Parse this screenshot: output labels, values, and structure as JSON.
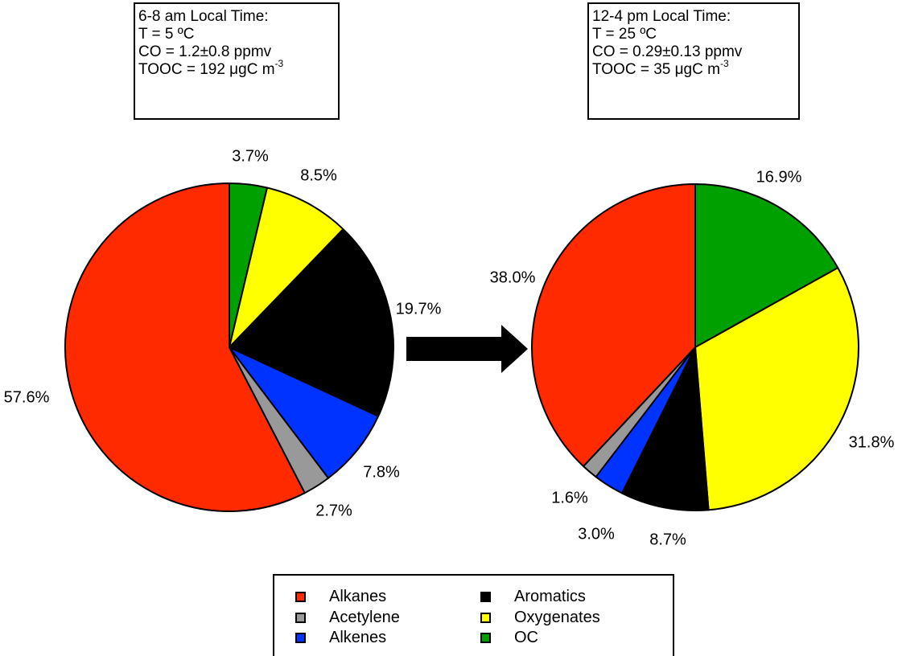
{
  "boxes": {
    "left": {
      "line1": "6-8 am Local Time:",
      "line2": "T = 5 ºC",
      "line3": "CO = 1.2±0.8 ppmv",
      "line4_pre": "TOOC = 192 μgC m",
      "line4_sup": "-3"
    },
    "right": {
      "line1": "12-4 pm Local Time:",
      "line2": "T = 25 ºC",
      "line3": "CO = 0.29±0.13 ppmv",
      "line4_pre": "TOOC = 35 μgC m",
      "line4_sup": "-3"
    }
  },
  "colors": {
    "Alkanes": "#ff2a00",
    "Acetylene": "#999999",
    "Alkenes": "#0033ff",
    "Aromatics": "#000000",
    "Oxygenates": "#ffff00",
    "OC": "#00a000"
  },
  "legend": {
    "items": [
      "Alkanes",
      "Aromatics",
      "Acetylene",
      "Oxygenates",
      "Alkenes",
      "OC"
    ]
  },
  "chart_data": [
    {
      "type": "pie",
      "title": "",
      "slices": [
        {
          "category": "OC",
          "value": 3.7,
          "label": "3.7%"
        },
        {
          "category": "Oxygenates",
          "value": 8.5,
          "label": "8.5%"
        },
        {
          "category": "Aromatics",
          "value": 19.7,
          "label": "19.7%"
        },
        {
          "category": "Alkenes",
          "value": 7.8,
          "label": "7.8%"
        },
        {
          "category": "Acetylene",
          "value": 2.7,
          "label": "2.7%"
        },
        {
          "category": "Alkanes",
          "value": 57.6,
          "label": "57.6%"
        }
      ]
    },
    {
      "type": "pie",
      "title": "",
      "slices": [
        {
          "category": "OC",
          "value": 16.9,
          "label": "16.9%"
        },
        {
          "category": "Oxygenates",
          "value": 31.8,
          "label": "31.8%"
        },
        {
          "category": "Aromatics",
          "value": 8.7,
          "label": "8.7%"
        },
        {
          "category": "Alkenes",
          "value": 3.0,
          "label": "3.0%"
        },
        {
          "category": "Acetylene",
          "value": 1.6,
          "label": "1.6%"
        },
        {
          "category": "Alkanes",
          "value": 38.0,
          "label": "38.0%"
        }
      ]
    }
  ]
}
